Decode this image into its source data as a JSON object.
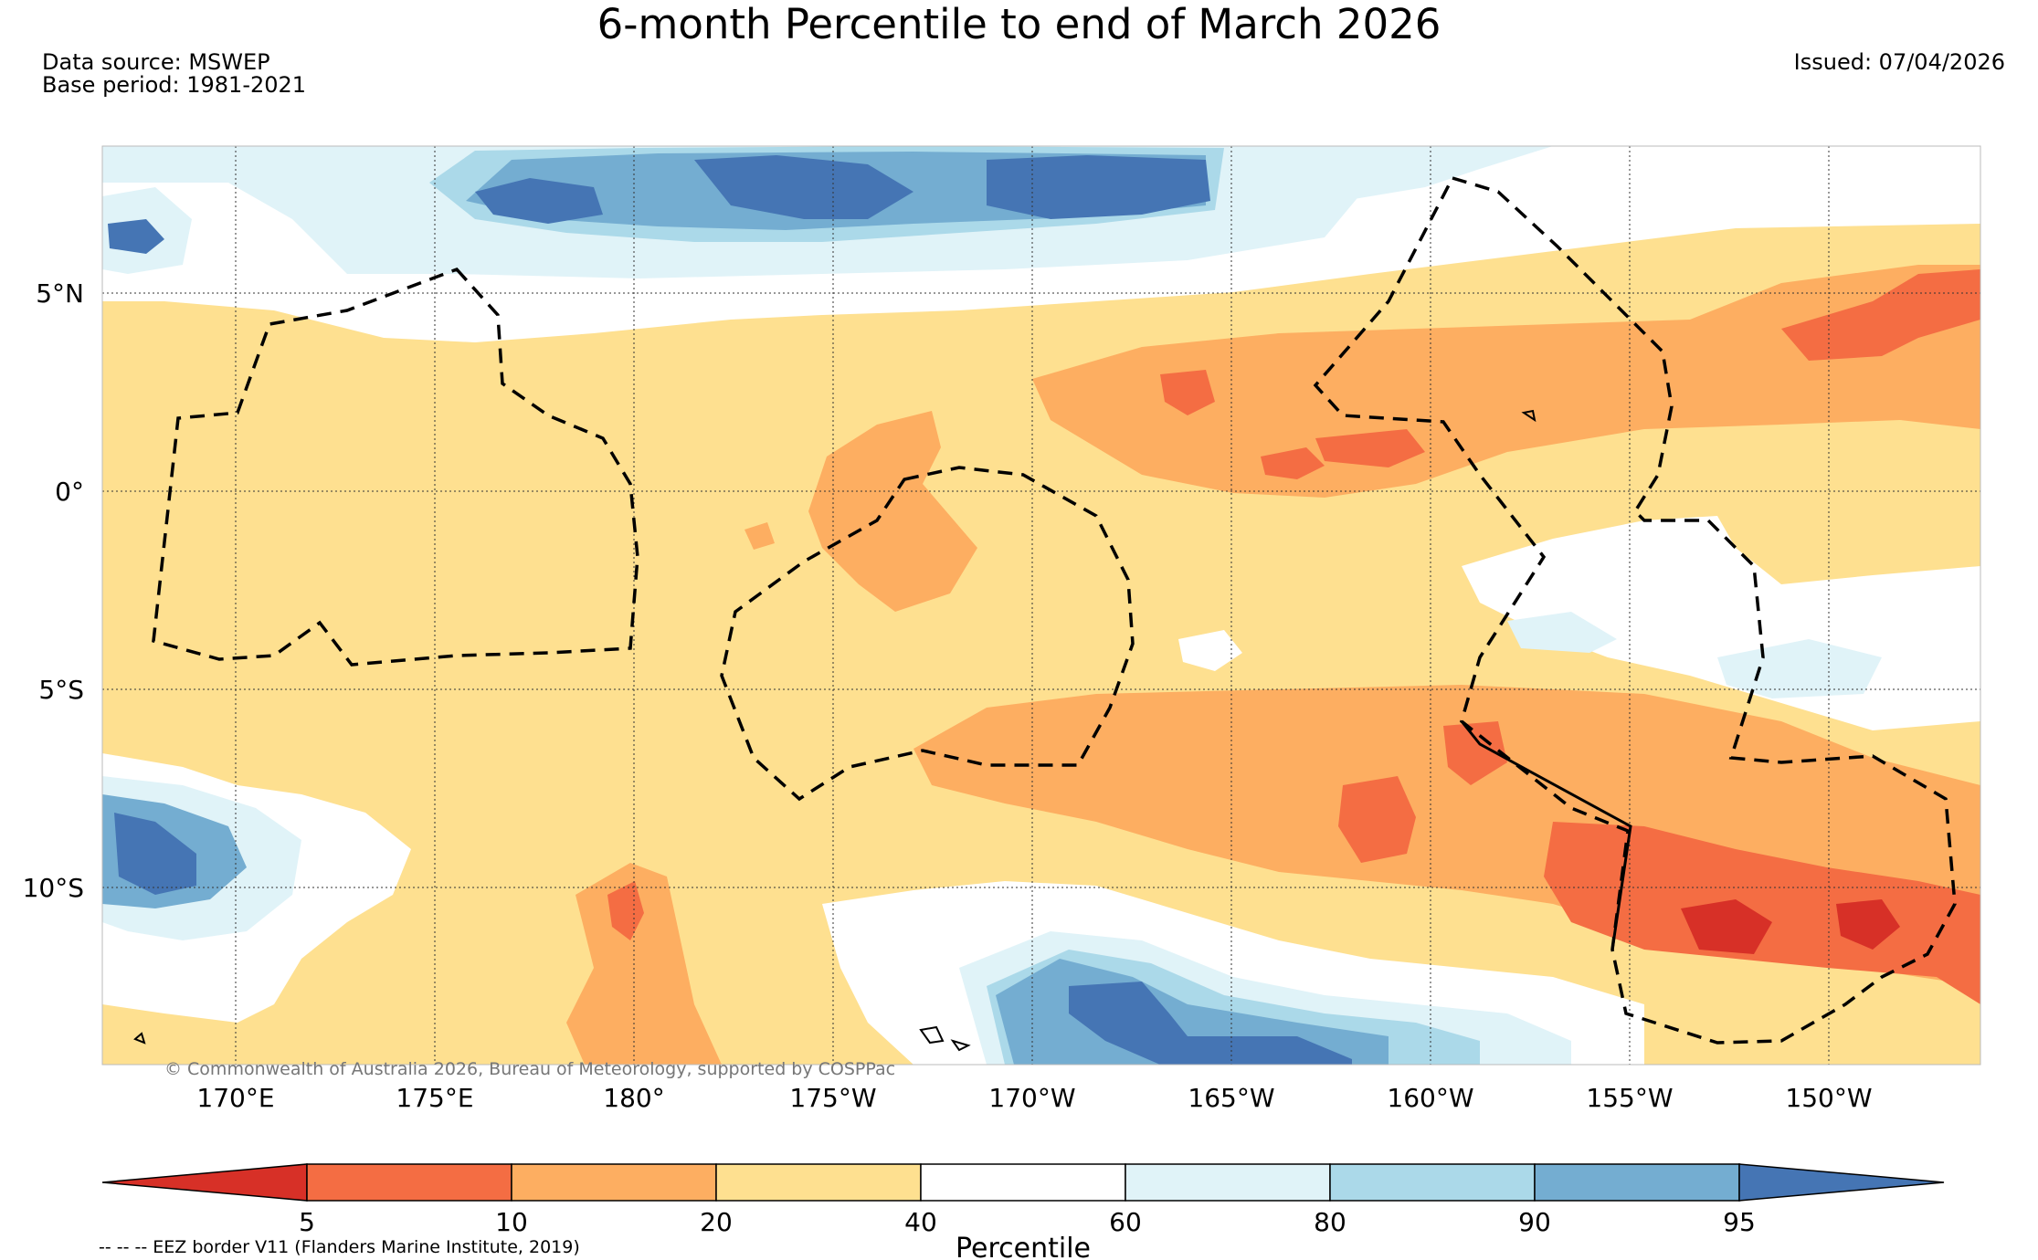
{
  "map": {
    "title": "6-month Percentile to end of March 2026",
    "data_source": "Data source: MSWEP",
    "base_period": "Base period: 1981-2021",
    "issued": "Issued: 07/04/2026",
    "copyright": "© Commonwealth of Australia 2026, Bureau of Meteorology, supported by COSPPac",
    "eez_note": "-- -- -- EEZ border V11 (Flanders Marine Institute, 2019)",
    "lat_labels": [
      "5°N",
      "0°",
      "5°S",
      "10°S"
    ],
    "lon_labels": [
      "170°E",
      "175°E",
      "180°",
      "175°W",
      "170°W",
      "165°W",
      "160°W",
      "155°W",
      "150°W"
    ]
  },
  "legend": {
    "label": "Percentile",
    "ticks": [
      "5",
      "10",
      "20",
      "40",
      "60",
      "80",
      "90",
      "95"
    ],
    "bins": [
      {
        "range": "<5",
        "color": "#d73027"
      },
      {
        "range": "5-10",
        "color": "#f46d43"
      },
      {
        "range": "10-20",
        "color": "#fdae61"
      },
      {
        "range": "20-40",
        "color": "#fee090"
      },
      {
        "range": "40-60",
        "color": "#ffffff"
      },
      {
        "range": "60-80",
        "color": "#e0f3f8"
      },
      {
        "range": "80-90",
        "color": "#abd9e9"
      },
      {
        "range": "90-95",
        "color": "#74add1"
      },
      {
        "range": ">95",
        "color": "#4575b4"
      }
    ]
  }
}
